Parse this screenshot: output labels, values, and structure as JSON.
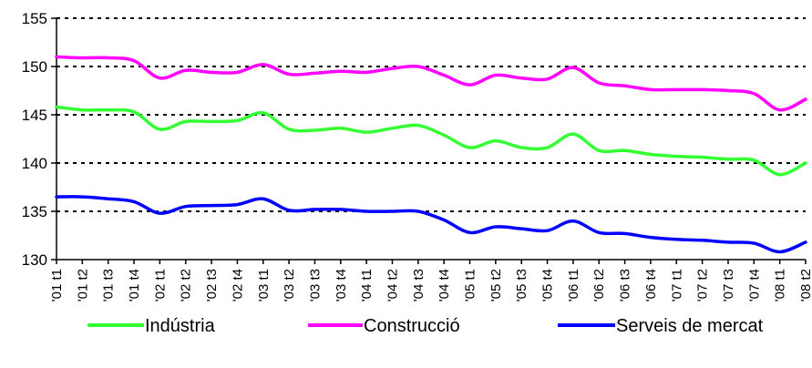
{
  "chart_data": {
    "type": "line",
    "title": "",
    "xlabel": "",
    "ylabel": "",
    "ylim": [
      130,
      155
    ],
    "yticks": [
      130,
      135,
      140,
      145,
      150,
      155
    ],
    "grid": "horizontal dashed",
    "legend_position": "bottom",
    "categories": [
      "'01 t1",
      "'01 t2",
      "'01 t3",
      "'01 t4",
      "'02 t1",
      "'02 t2",
      "'02 t3",
      "'02 t4",
      "'03 t1",
      "'03 t2",
      "'03 t3",
      "'03 t4",
      "'04 t1",
      "'04 t2",
      "'04 t3",
      "'04 t4",
      "'05 t1",
      "'05 t2",
      "'05 t3",
      "'05 t4",
      "'06 t1",
      "'06 t2",
      "'06 t3",
      "'06 t4",
      "'07 t1",
      "'07 t2",
      "'07 t3",
      "'07 t4",
      "'08 t1",
      "'08 t2"
    ],
    "series": [
      {
        "name": "Indústria",
        "color": "#33ff33",
        "values": [
          145.8,
          145.5,
          145.5,
          145.3,
          143.5,
          144.3,
          144.3,
          144.4,
          145.2,
          143.5,
          143.4,
          143.6,
          143.2,
          143.6,
          143.9,
          142.9,
          141.6,
          142.3,
          141.6,
          141.6,
          143.0,
          141.3,
          141.3,
          140.9,
          140.7,
          140.6,
          140.4,
          140.3,
          138.8,
          140.0
        ]
      },
      {
        "name": "Construcció",
        "color": "#ff00ff",
        "values": [
          151.0,
          150.9,
          150.9,
          150.6,
          148.8,
          149.6,
          149.4,
          149.4,
          150.2,
          149.2,
          149.3,
          149.5,
          149.4,
          149.8,
          150.0,
          149.1,
          148.1,
          149.1,
          148.8,
          148.7,
          149.9,
          148.3,
          148.0,
          147.6,
          147.6,
          147.6,
          147.5,
          147.2,
          145.5,
          146.6
        ]
      },
      {
        "name": "Serveis de mercat",
        "color": "#0000ff",
        "values": [
          136.5,
          136.5,
          136.3,
          136.0,
          134.8,
          135.5,
          135.6,
          135.7,
          136.3,
          135.1,
          135.2,
          135.2,
          135.0,
          135.0,
          135.0,
          134.1,
          132.8,
          133.4,
          133.2,
          133.0,
          134.0,
          132.8,
          132.7,
          132.3,
          132.1,
          132.0,
          131.8,
          131.7,
          130.8,
          131.8
        ]
      }
    ]
  }
}
